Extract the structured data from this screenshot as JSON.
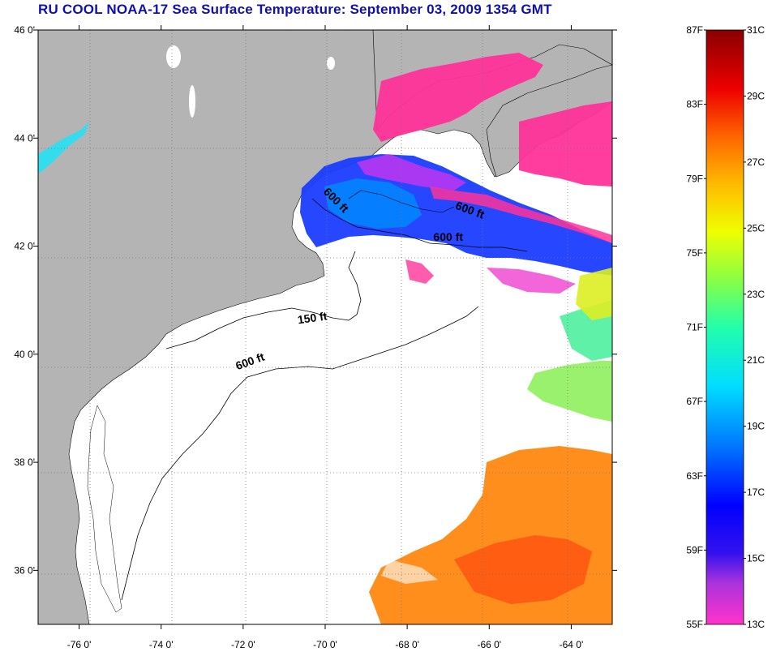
{
  "title": "RU COOL  NOAA-17  Sea Surface Temperature:  September 03, 2009 1354 GMT",
  "map": {
    "lon_range": [
      -77,
      -63
    ],
    "lat_range": [
      35,
      46
    ],
    "lon_ticks": [
      {
        "value": -76,
        "label": "-76 0'"
      },
      {
        "value": -74,
        "label": "-74 0'"
      },
      {
        "value": -72,
        "label": "-72 0'"
      },
      {
        "value": -70,
        "label": "-70 0'"
      },
      {
        "value": -68,
        "label": "-68 0'"
      },
      {
        "value": -66,
        "label": "-66 0'"
      },
      {
        "value": -64,
        "label": "-64 0'"
      }
    ],
    "lat_ticks": [
      {
        "value": 46,
        "label": "46 0'"
      },
      {
        "value": 44,
        "label": "44 0'"
      },
      {
        "value": 42,
        "label": "42 0'"
      },
      {
        "value": 40,
        "label": "40 0'"
      },
      {
        "value": 38,
        "label": "38 0'"
      },
      {
        "value": 36,
        "label": "36 0'"
      }
    ],
    "contour_labels": [
      {
        "text": "600 ft",
        "lon": -69.8,
        "lat": 42.8,
        "angle": 45
      },
      {
        "text": "600 ft",
        "lon": -66.5,
        "lat": 42.6,
        "angle": 20
      },
      {
        "text": "600 ft",
        "lon": -67.0,
        "lat": 42.1,
        "angle": 0
      },
      {
        "text": "150 ft",
        "lon": -70.3,
        "lat": 40.6,
        "angle": -8
      },
      {
        "text": "600 ft",
        "lon": -71.8,
        "lat": 39.8,
        "angle": -20
      }
    ],
    "land_color": "#b4b4b4",
    "water_color": "#ffffff"
  },
  "colorbar": {
    "fahrenheit": [
      "87F",
      "83F",
      "79F",
      "75F",
      "71F",
      "67F",
      "63F",
      "59F",
      "55F"
    ],
    "celsius": [
      "31C",
      "29C",
      "27C",
      "25C",
      "23C",
      "21C",
      "19C",
      "17C",
      "15C",
      "13C"
    ],
    "min_c": 13,
    "max_c": 31,
    "colors": [
      "#ff33cc",
      "#8844ee",
      "#0000ff",
      "#0088ff",
      "#00ddff",
      "#44ffaa",
      "#ccff00",
      "#ffee00",
      "#ffaa00",
      "#ff5500",
      "#ee0000",
      "#990000"
    ]
  }
}
